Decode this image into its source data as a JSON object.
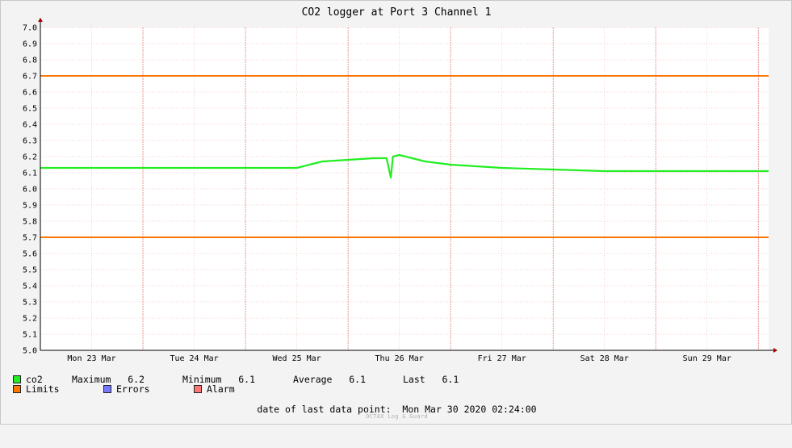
{
  "chart_data": {
    "type": "line",
    "title": "CO2 logger at Port 3 Channel 1",
    "xlabel": "",
    "ylabel": "",
    "ylim": [
      5.0,
      7.0
    ],
    "yticks": [
      "7.0",
      "6.9",
      "6.8",
      "6.7",
      "6.6",
      "6.5",
      "6.4",
      "6.3",
      "6.2",
      "6.1",
      "6.0",
      "5.9",
      "5.8",
      "5.7",
      "5.6",
      "5.5",
      "5.4",
      "5.3",
      "5.2",
      "5.1",
      "5.0"
    ],
    "x_start": "Mon 23 Mar 2020 00:00",
    "x_end": "Mon 30 Mar 2020 02:24",
    "xticks": [
      "Mon 23 Mar",
      "Tue 24 Mar",
      "Wed 25 Mar",
      "Thu 26 Mar",
      "Fri 27 Mar",
      "Sat 28 Mar",
      "Sun 29 Mar"
    ],
    "grid": true,
    "legend_placement": "bottom",
    "series": [
      {
        "name": "co2",
        "color": "#22ee22",
        "points": [
          [
            "Mon 23 Mar 2020 00:00",
            6.13
          ],
          [
            "Mon 23 Mar 2020 12:00",
            6.13
          ],
          [
            "Tue 24 Mar 2020 00:00",
            6.13
          ],
          [
            "Tue 24 Mar 2020 12:00",
            6.13
          ],
          [
            "Wed 25 Mar 2020 00:00",
            6.13
          ],
          [
            "Wed 25 Mar 2020 06:00",
            6.13
          ],
          [
            "Wed 25 Mar 2020 12:00",
            6.13
          ],
          [
            "Wed 25 Mar 2020 15:00",
            6.15
          ],
          [
            "Wed 25 Mar 2020 18:00",
            6.17
          ],
          [
            "Thu 26 Mar 2020 00:00",
            6.18
          ],
          [
            "Thu 26 Mar 2020 06:00",
            6.19
          ],
          [
            "Thu 26 Mar 2020 09:00",
            6.19
          ],
          [
            "Thu 26 Mar 2020 10:00",
            6.07
          ],
          [
            "Thu 26 Mar 2020 10:30",
            6.2
          ],
          [
            "Thu 26 Mar 2020 12:00",
            6.21
          ],
          [
            "Thu 26 Mar 2020 15:00",
            6.19
          ],
          [
            "Thu 26 Mar 2020 18:00",
            6.17
          ],
          [
            "Fri 27 Mar 2020 00:00",
            6.15
          ],
          [
            "Fri 27 Mar 2020 12:00",
            6.13
          ],
          [
            "Sat 28 Mar 2020 00:00",
            6.12
          ],
          [
            "Sat 28 Mar 2020 12:00",
            6.11
          ],
          [
            "Sun 29 Mar 2020 00:00",
            6.11
          ],
          [
            "Sun 29 Mar 2020 12:00",
            6.11
          ],
          [
            "Mon 30 Mar 2020 00:00",
            6.11
          ],
          [
            "Mon 30 Mar 2020 02:24",
            6.11
          ]
        ]
      },
      {
        "name": "Limits",
        "color": "#ff7700",
        "values": [
          6.7,
          5.7
        ]
      }
    ],
    "legend": {
      "co2": {
        "label": "co2",
        "color": "#22ee22"
      },
      "stats": [
        {
          "label": "Maximum",
          "value": "6.2"
        },
        {
          "label": "Minimum",
          "value": "6.1"
        },
        {
          "label": "Average",
          "value": "6.1"
        },
        {
          "label": "Last",
          "value": "6.1"
        }
      ],
      "limits": {
        "label": "Limits",
        "color": "#ff7700"
      },
      "errors": {
        "label": "Errors",
        "color": "#7777ff"
      },
      "alarm": {
        "label": "Alarm",
        "color": "#ff7777"
      }
    }
  },
  "footer": {
    "last_point_label": "date of last data point:",
    "last_point_value": "Mon Mar 30 2020 02:24:00",
    "brand": "OCTAX Log & Guard"
  }
}
